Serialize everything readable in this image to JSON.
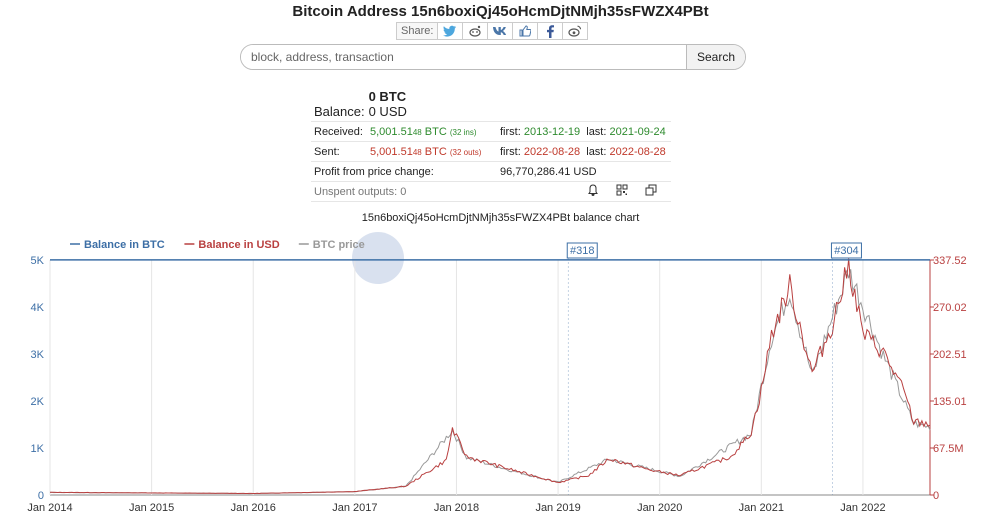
{
  "page": {
    "title": "Bitcoin Address 15n6boxiQj45oHcmDjtNMjh35sFWZX4PBt",
    "share_label": "Share:"
  },
  "search": {
    "placeholder": "block, address, transaction",
    "button": "Search"
  },
  "summary": {
    "balance_label": "Balance:",
    "balance_btc": "0 BTC",
    "balance_usd": "0 USD",
    "received_label": "Received:",
    "received_amount": "5,001.51",
    "received_small": "48",
    "received_unit": "BTC",
    "received_ins": "(32 ins)",
    "received_first_label": "first:",
    "received_first": "2013-12-19",
    "received_last_label": "last:",
    "received_last": "2021-09-24",
    "sent_label": "Sent:",
    "sent_amount": "5,001.51",
    "sent_small": "48",
    "sent_unit": "BTC",
    "sent_outs": "(32 outs)",
    "sent_first_label": "first:",
    "sent_first": "2022-08-28",
    "sent_last_label": "last:",
    "sent_last": "2022-08-28",
    "profit_label": "Profit from price change:",
    "profit_value": "96,770,286.41 USD",
    "unspent_label": "Unspent outputs: 0"
  },
  "colors": {
    "btc": "#3d6fa6",
    "usd": "#b94040",
    "price": "#999999",
    "green": "#2e8b2e",
    "red": "#c0392b"
  },
  "chart_data": {
    "type": "line",
    "title": "15n6boxiQj45oHcmDjtNMjh35sFWZX4PBt balance chart",
    "legend": [
      "Balance in BTC",
      "Balance in USD",
      "BTC price"
    ],
    "legend_position": "top-left",
    "x_ticks": [
      "Jan 2014",
      "Jan 2015",
      "Jan 2016",
      "Jan 2017",
      "Jan 2018",
      "Jan 2019",
      "Jan 2020",
      "Jan 2021",
      "Jan 2022"
    ],
    "y_left_ticks": [
      "0",
      "1K",
      "2K",
      "3K",
      "4K",
      "5K"
    ],
    "y_right_ticks": [
      "0",
      "67.5M",
      "135.01",
      "202.51",
      "270.02",
      "337.52"
    ],
    "flags": [
      "#318",
      "#304"
    ],
    "series": [
      {
        "name": "Balance in BTC",
        "x": [
          2014.0,
          2022.66
        ],
        "values": [
          5001.51,
          5001.51
        ]
      },
      {
        "name": "Balance in USD",
        "x": [
          2014.0,
          2016.0,
          2017.0,
          2017.5,
          2017.9,
          2017.96,
          2018.1,
          2018.5,
          2019.0,
          2019.3,
          2019.5,
          2019.9,
          2020.2,
          2020.7,
          2020.9,
          2021.0,
          2021.1,
          2021.28,
          2021.5,
          2021.7,
          2021.86,
          2022.0,
          2022.2,
          2022.4,
          2022.5,
          2022.66
        ],
        "values": [
          3.8,
          2.2,
          5.0,
          12.5,
          50,
          95,
          55,
          38,
          18,
          28,
          52,
          36,
          28,
          55,
          90,
          150,
          230,
          300,
          175,
          245,
          330,
          232,
          205,
          150,
          105,
          102
        ]
      },
      {
        "name": "BTC price",
        "x": [
          2014.0,
          2016.0,
          2017.0,
          2017.5,
          2017.96,
          2018.1,
          2018.5,
          2019.0,
          2019.5,
          2020.2,
          2020.9,
          2021.1,
          2021.28,
          2021.5,
          2021.86,
          2022.2,
          2022.5,
          2022.66
        ],
        "values": [
          760,
          430,
          1000,
          2500,
          19000,
          11000,
          7500,
          3700,
          10500,
          5500,
          18000,
          46000,
          60000,
          35000,
          66000,
          41000,
          21000,
          20000
        ]
      }
    ]
  }
}
